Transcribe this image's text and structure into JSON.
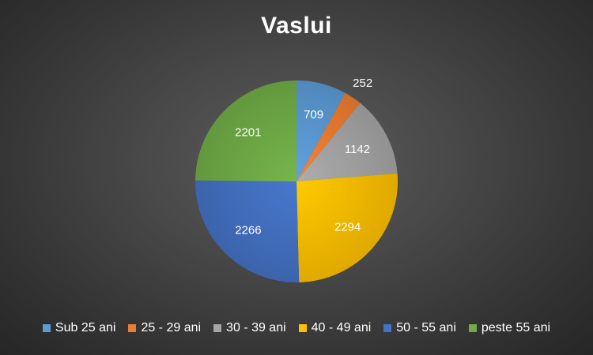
{
  "chart_data": {
    "type": "pie",
    "title": "Vaslui",
    "categories": [
      "Sub 25 ani",
      "25 - 29 ani",
      "30 - 39 ani",
      "40 - 49 ani",
      "50 - 55 ani",
      "peste 55 ani"
    ],
    "values": [
      709,
      252,
      1142,
      2294,
      2266,
      2201
    ],
    "colors": [
      "#5b9bd5",
      "#ed7d31",
      "#a5a5a5",
      "#ffc000",
      "#4472c4",
      "#70ad47"
    ],
    "data_labels": true,
    "legend_position": "bottom"
  }
}
